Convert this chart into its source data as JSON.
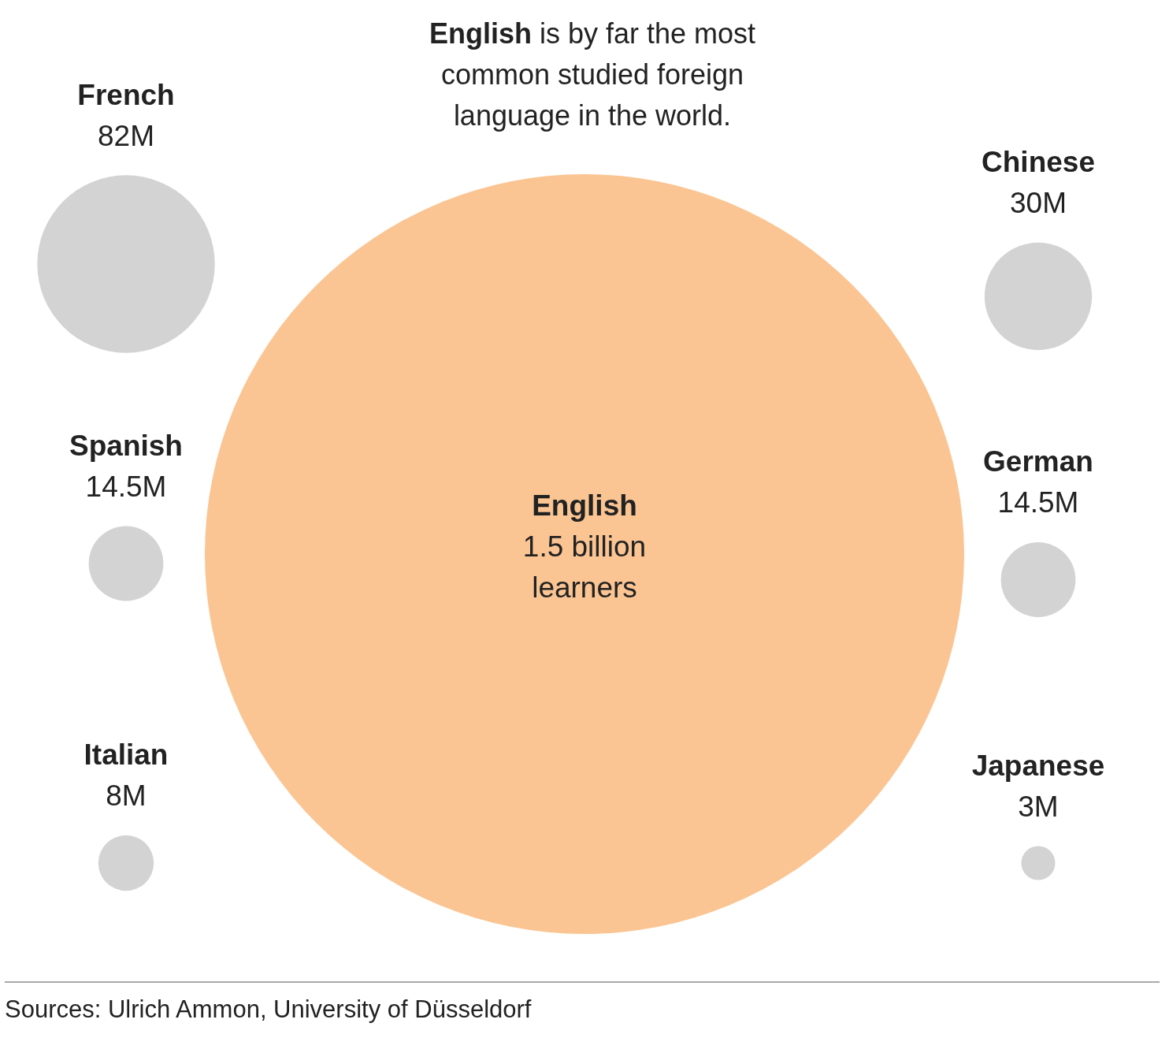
{
  "chart_data": {
    "type": "other",
    "title": "English is by far the most common studied foreign language in the world.",
    "categories": [
      "English",
      "French",
      "Spanish",
      "Italian",
      "Chinese",
      "German",
      "Japanese"
    ],
    "values": [
      1500000000,
      82000000,
      14500000,
      8000000,
      30000000,
      14500000,
      3000000
    ],
    "value_labels": [
      "1.5 billion learners",
      "82M",
      "14.5M",
      "8M",
      "30M",
      "14.5M",
      "3M"
    ],
    "colors": [
      "#fbc593",
      "#d3d3d3",
      "#d3d3d3",
      "#d3d3d3",
      "#d3d3d3",
      "#d3d3d3",
      "#d3d3d3"
    ],
    "annotations": [
      "Sources: Ulrich Ammon, University of Düsseldorf"
    ]
  }
}
